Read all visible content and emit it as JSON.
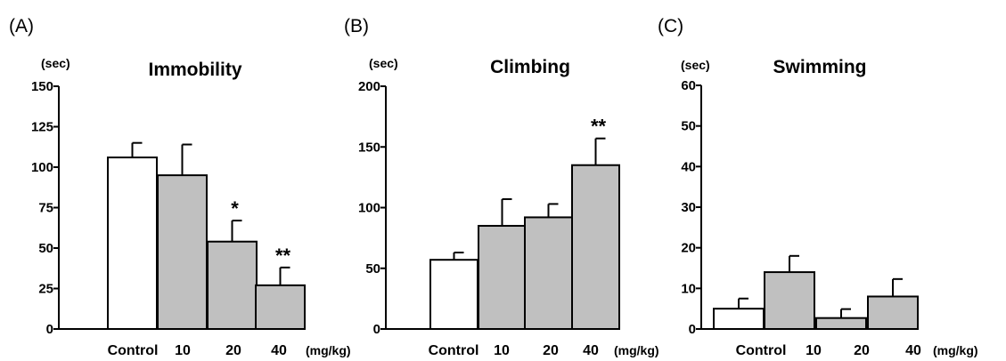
{
  "chart_data": [
    {
      "type": "bar",
      "panel": "(A)",
      "title": "Immobility",
      "ylabel": "(sec)",
      "xunit": "(mg/kg)",
      "ylim": [
        0,
        150
      ],
      "yticks": [
        0,
        25,
        50,
        75,
        100,
        125,
        150
      ],
      "categories": [
        "Control",
        "10",
        "20",
        "40"
      ],
      "values": [
        106,
        95,
        54,
        27
      ],
      "errors": [
        9,
        19,
        13,
        11
      ],
      "bar_colors": [
        "#ffffff",
        "#c0c0c0",
        "#c0c0c0",
        "#c0c0c0"
      ],
      "significance": [
        "",
        "",
        "*",
        "**"
      ]
    },
    {
      "type": "bar",
      "panel": "(B)",
      "title": "Climbing",
      "ylabel": "(sec)",
      "xunit": "(mg/kg)",
      "ylim": [
        0,
        200
      ],
      "yticks": [
        0,
        50,
        100,
        150,
        200
      ],
      "categories": [
        "Control",
        "10",
        "20",
        "40"
      ],
      "values": [
        57,
        85,
        92,
        135
      ],
      "errors": [
        6,
        22,
        11,
        22
      ],
      "bar_colors": [
        "#ffffff",
        "#c0c0c0",
        "#c0c0c0",
        "#c0c0c0"
      ],
      "significance": [
        "",
        "",
        "",
        "**"
      ]
    },
    {
      "type": "bar",
      "panel": "(C)",
      "title": "Swimming",
      "ylabel": "(sec)",
      "xunit": "(mg/kg)",
      "ylim": [
        0,
        60
      ],
      "yticks": [
        0,
        10,
        20,
        30,
        40,
        50,
        60
      ],
      "categories": [
        "Control",
        "10",
        "20",
        "40"
      ],
      "values": [
        5,
        14,
        2.7,
        8
      ],
      "errors": [
        2.5,
        4,
        2.2,
        4.3
      ],
      "bar_colors": [
        "#ffffff",
        "#c0c0c0",
        "#c0c0c0",
        "#c0c0c0"
      ],
      "significance": [
        "",
        "",
        "",
        ""
      ]
    }
  ]
}
